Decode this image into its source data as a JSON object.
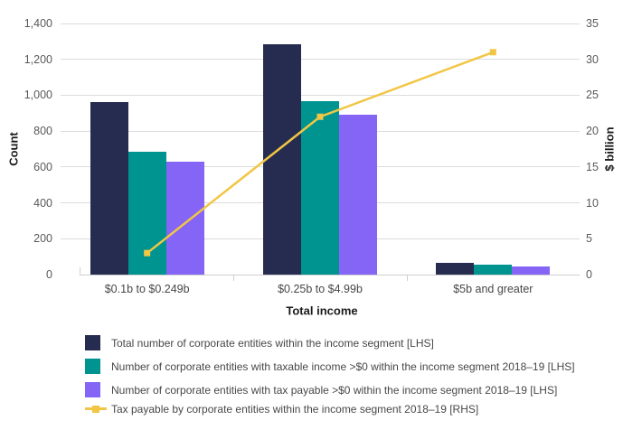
{
  "chart_data": {
    "type": "bar",
    "subtype": "grouped-bars-with-line-overlay-dual-axis",
    "title": "",
    "xlabel": "Total income",
    "ylabel_left": "Count",
    "ylabel_right": "$ billion",
    "categories": [
      "$0.1b to $0.249b",
      "$0.25b to $4.99b",
      "$5b and greater"
    ],
    "series": [
      {
        "name": "Total number of corporate entities within the income segment [LHS]",
        "type": "bar",
        "axis": "left",
        "color": "#262c4f",
        "values": [
          960,
          1285,
          65
        ]
      },
      {
        "name": "Number of corporate entities with taxable income >$0 within the income segment 2018–19 [LHS]",
        "type": "bar",
        "axis": "left",
        "color": "#009490",
        "values": [
          685,
          968,
          55
        ]
      },
      {
        "name": "Number of corporate entities with tax payable >$0 within the income segment 2018–19 [LHS]",
        "type": "bar",
        "axis": "left",
        "color": "#8565f6",
        "values": [
          632,
          890,
          45
        ]
      },
      {
        "name": "Tax payable by corporate entities within the income segment 2018–19 [RHS]",
        "type": "line",
        "axis": "right",
        "color": "#f1c644",
        "marker": "square",
        "values": [
          3,
          22,
          31
        ]
      }
    ],
    "y_left": {
      "min": 0,
      "max": 1400,
      "ticks": [
        0,
        200,
        400,
        600,
        800,
        1000,
        1200,
        1400
      ],
      "labels": [
        "0",
        "200",
        "400",
        "600",
        "800",
        "1,000",
        "1,200",
        "1,400"
      ]
    },
    "y_right": {
      "min": 0,
      "max": 35,
      "ticks": [
        0,
        5,
        10,
        15,
        20,
        25,
        30,
        35
      ],
      "labels": [
        "0",
        "5",
        "10",
        "15",
        "20",
        "25",
        "30",
        "35"
      ]
    },
    "grid": "horizontal",
    "legend_position": "bottom-left"
  },
  "colors": {
    "background": "#ffffff",
    "gridline": "#dcdcdc",
    "axis_line": "#cfcfcf",
    "tick_text": "#595959",
    "category_text": "#474747",
    "title_text": "#1a1a1a"
  }
}
